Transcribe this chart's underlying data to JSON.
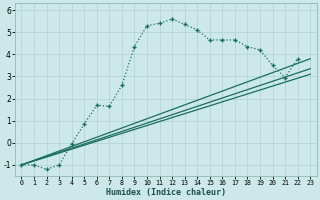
{
  "xlabel": "Humidex (Indice chaleur)",
  "bg_color": "#cce8e8",
  "grid_color": "#b8d8d8",
  "line_color": "#1a6e60",
  "xlim": [
    -0.5,
    23.5
  ],
  "ylim": [
    -1.5,
    6.3
  ],
  "xticks": [
    0,
    1,
    2,
    3,
    4,
    5,
    6,
    7,
    8,
    9,
    10,
    11,
    12,
    13,
    14,
    15,
    16,
    17,
    18,
    19,
    20,
    21,
    22,
    23
  ],
  "yticks": [
    -1,
    0,
    1,
    2,
    3,
    4,
    5,
    6
  ],
  "curve1_x": [
    0,
    1,
    2,
    3,
    4,
    5,
    6,
    7,
    8,
    9,
    10,
    11,
    12,
    13,
    14,
    15,
    16,
    17,
    18,
    19,
    20,
    21,
    22
  ],
  "curve1_y": [
    -1.0,
    -1.0,
    -1.2,
    -1.0,
    -0.05,
    0.85,
    1.7,
    1.65,
    2.6,
    4.35,
    5.3,
    5.4,
    5.6,
    5.35,
    5.1,
    4.65,
    4.65,
    4.65,
    4.35,
    4.2,
    3.5,
    2.95,
    3.8
  ],
  "line2_x": [
    0,
    23
  ],
  "line2_y": [
    -1.0,
    3.1
  ],
  "line3_x": [
    0,
    23
  ],
  "line3_y": [
    -1.0,
    3.35
  ],
  "line4_x": [
    0,
    23
  ],
  "line4_y": [
    -1.0,
    3.8
  ]
}
